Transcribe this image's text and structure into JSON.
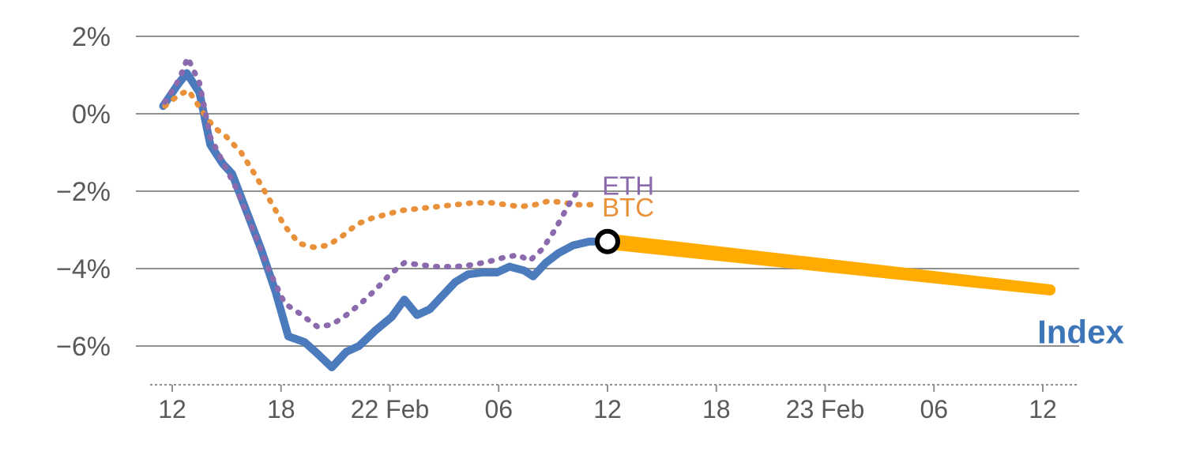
{
  "page": {
    "background": "#ffffff"
  },
  "chart_data": {
    "type": "line",
    "title": "",
    "xlabel": "",
    "ylabel": "",
    "grid": "horizontal",
    "legend": "inline-labels",
    "x_unit": "hours from first visible tick, ticks every 6 hours",
    "xlim": [
      -1.5,
      50.5
    ],
    "ylim": [
      -7.2,
      2.6
    ],
    "colors": {
      "grid": "#8f8f8f",
      "axis_text": "#595959",
      "index": "#4b7bbd",
      "btc": "#e8913a",
      "eth": "#8a6aad",
      "projection": "#ffab00"
    },
    "y_ticks": [
      {
        "label": "2%",
        "value": 2
      },
      {
        "label": "0%",
        "value": 0
      },
      {
        "label": "−2%",
        "value": -2
      },
      {
        "label": "−4%",
        "value": -4
      },
      {
        "label": "−6%",
        "value": -6
      }
    ],
    "x_ticks": [
      {
        "label": "12",
        "x": 0
      },
      {
        "label": "18",
        "x": 6
      },
      {
        "label": "22 Feb",
        "x": 12
      },
      {
        "label": "06",
        "x": 18
      },
      {
        "label": "12",
        "x": 24
      },
      {
        "label": "18",
        "x": 30
      },
      {
        "label": "23 Feb",
        "x": 36
      },
      {
        "label": "06",
        "x": 42
      },
      {
        "label": "12",
        "x": 48
      }
    ],
    "series": [
      {
        "name": "Index",
        "color": "#4b7bbd",
        "style": "solid",
        "width": 10,
        "points": [
          [
            -0.5,
            0.2
          ],
          [
            0.3,
            0.75
          ],
          [
            0.8,
            1.05
          ],
          [
            1.5,
            0.55
          ],
          [
            2.1,
            -0.8
          ],
          [
            2.8,
            -1.3
          ],
          [
            3.3,
            -1.55
          ],
          [
            4.0,
            -2.4
          ],
          [
            4.9,
            -3.5
          ],
          [
            5.7,
            -4.6
          ],
          [
            6.4,
            -5.75
          ],
          [
            7.3,
            -5.9
          ],
          [
            7.9,
            -6.15
          ],
          [
            8.8,
            -6.55
          ],
          [
            9.6,
            -6.15
          ],
          [
            10.3,
            -6.0
          ],
          [
            11.2,
            -5.6
          ],
          [
            12.1,
            -5.25
          ],
          [
            12.8,
            -4.8
          ],
          [
            13.5,
            -5.2
          ],
          [
            14.2,
            -5.05
          ],
          [
            14.9,
            -4.7
          ],
          [
            15.6,
            -4.35
          ],
          [
            16.3,
            -4.15
          ],
          [
            17.1,
            -4.1
          ],
          [
            17.9,
            -4.1
          ],
          [
            18.6,
            -3.95
          ],
          [
            19.4,
            -4.05
          ],
          [
            19.9,
            -4.2
          ],
          [
            20.6,
            -3.85
          ],
          [
            21.3,
            -3.6
          ],
          [
            22.1,
            -3.4
          ],
          [
            23.0,
            -3.3
          ],
          [
            24.0,
            -3.3
          ]
        ]
      },
      {
        "name": "BTC",
        "color": "#e8913a",
        "style": "dotted",
        "width": 7,
        "points": [
          [
            -0.4,
            0.2
          ],
          [
            0.4,
            0.5
          ],
          [
            0.9,
            0.6
          ],
          [
            1.6,
            0.1
          ],
          [
            2.3,
            -0.35
          ],
          [
            3.0,
            -0.6
          ],
          [
            3.8,
            -1.0
          ],
          [
            4.6,
            -1.6
          ],
          [
            5.4,
            -2.25
          ],
          [
            6.2,
            -2.9
          ],
          [
            7.0,
            -3.35
          ],
          [
            7.8,
            -3.45
          ],
          [
            8.6,
            -3.4
          ],
          [
            9.4,
            -3.15
          ],
          [
            10.2,
            -2.85
          ],
          [
            11.0,
            -2.7
          ],
          [
            11.8,
            -2.6
          ],
          [
            12.6,
            -2.5
          ],
          [
            13.6,
            -2.45
          ],
          [
            14.6,
            -2.4
          ],
          [
            15.6,
            -2.35
          ],
          [
            16.6,
            -2.3
          ],
          [
            17.6,
            -2.3
          ],
          [
            18.4,
            -2.35
          ],
          [
            19.2,
            -2.4
          ],
          [
            20.0,
            -2.35
          ],
          [
            20.8,
            -2.25
          ],
          [
            21.6,
            -2.3
          ],
          [
            22.4,
            -2.35
          ],
          [
            23.2,
            -2.35
          ]
        ]
      },
      {
        "name": "ETH",
        "color": "#8a6aad",
        "style": "dotted",
        "width": 7,
        "points": [
          [
            -0.4,
            0.3
          ],
          [
            0.4,
            0.9
          ],
          [
            0.85,
            1.45
          ],
          [
            1.5,
            0.8
          ],
          [
            2.1,
            -0.6
          ],
          [
            2.9,
            -1.35
          ],
          [
            3.5,
            -1.9
          ],
          [
            4.3,
            -2.8
          ],
          [
            5.2,
            -3.9
          ],
          [
            6.2,
            -4.9
          ],
          [
            7.0,
            -5.15
          ],
          [
            8.0,
            -5.5
          ],
          [
            8.8,
            -5.45
          ],
          [
            9.6,
            -5.2
          ],
          [
            10.4,
            -4.9
          ],
          [
            11.2,
            -4.55
          ],
          [
            12.0,
            -4.15
          ],
          [
            12.8,
            -3.85
          ],
          [
            13.6,
            -3.9
          ],
          [
            14.6,
            -3.95
          ],
          [
            15.6,
            -3.95
          ],
          [
            16.6,
            -3.9
          ],
          [
            17.6,
            -3.8
          ],
          [
            18.4,
            -3.7
          ],
          [
            19.1,
            -3.65
          ],
          [
            19.7,
            -3.8
          ],
          [
            20.4,
            -3.5
          ],
          [
            21.1,
            -3.0
          ],
          [
            21.8,
            -2.4
          ],
          [
            22.4,
            -1.95
          ]
        ]
      },
      {
        "name": "Index projection",
        "color": "#ffab00",
        "style": "solid",
        "width": 17,
        "taper": [
          20,
          14
        ],
        "points": [
          [
            24,
            -3.3
          ],
          [
            48.4,
            -4.55
          ]
        ]
      }
    ],
    "marker": {
      "x": 24,
      "y": -3.3,
      "radius": 13,
      "fill": "#ffffff",
      "stroke": "#000000",
      "stroke_width": 6
    },
    "annotations": [
      {
        "text": "ETH",
        "x": 23.7,
        "y": -1.86,
        "color": "#8a6aad",
        "size": 33,
        "weight": "400",
        "anchor": "start"
      },
      {
        "text": "BTC",
        "x": 23.7,
        "y": -2.42,
        "color": "#e8913a",
        "size": 33,
        "weight": "400",
        "anchor": "start"
      },
      {
        "text": "Index",
        "x": 47.7,
        "y": -5.63,
        "color": "#3d76b8",
        "size": 42,
        "weight": "bold",
        "anchor": "start"
      }
    ]
  }
}
